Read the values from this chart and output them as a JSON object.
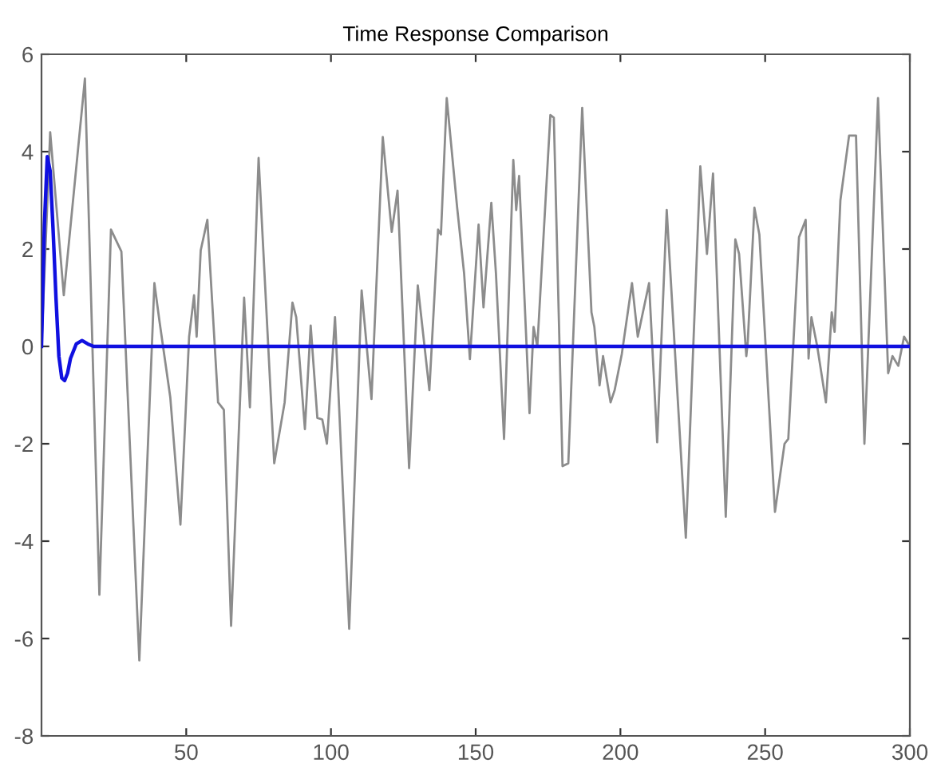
{
  "chart_data": {
    "type": "line",
    "title": "Time Response Comparison",
    "xlim": [
      0,
      300
    ],
    "ylim": [
      -8,
      6
    ],
    "xticks": [
      50,
      100,
      150,
      200,
      250,
      300
    ],
    "yticks": [
      -8,
      -6,
      -4,
      -2,
      0,
      2,
      4,
      6
    ],
    "grid": false,
    "series": [
      {
        "color": "#8c8c8c",
        "x": [
          0,
          3,
          7.7,
          15,
          20,
          24,
          27.6,
          33.8,
          39,
          40.8,
          44.5,
          48,
          51,
          52.7,
          53.6,
          55,
          57.3,
          61,
          63,
          65.5,
          70,
          72,
          75,
          80.4,
          84,
          86.7,
          88,
          91,
          93,
          95.3,
          97,
          98.6,
          101.4,
          106.3,
          110.6,
          114,
          117.9,
          121,
          123,
          127,
          130,
          134,
          137,
          138,
          140,
          143.6,
          146,
          148,
          151,
          152.7,
          155.4,
          157,
          159.8,
          163,
          164,
          165,
          168.6,
          170,
          171.3,
          175.8,
          177,
          180,
          182,
          186.8,
          190,
          191,
          192.8,
          194,
          196.6,
          198,
          200.5,
          204,
          206,
          209.9,
          212.7,
          216,
          222.6,
          227.6,
          229.9,
          232,
          236.4,
          239.7,
          241,
          243.5,
          244,
          246.3,
          248,
          253.4,
          256.7,
          258,
          261.7,
          264,
          265,
          266,
          268,
          271,
          273,
          274,
          276,
          279,
          281.4,
          284.3,
          289,
          292.5,
          294,
          296,
          298,
          300
        ],
        "values": [
          0,
          4.4,
          1.05,
          5.5,
          -5.1,
          2.4,
          1.95,
          -6.45,
          1.3,
          0.5,
          -1.05,
          -3.66,
          0.2,
          1.05,
          0.2,
          1.97,
          2.6,
          -1.15,
          -1.3,
          -5.74,
          1.0,
          -1.25,
          3.87,
          -2.4,
          -1.15,
          0.9,
          0.6,
          -1.7,
          0.43,
          -1.47,
          -1.5,
          -2.0,
          0.6,
          -5.8,
          1.15,
          -1.08,
          4.3,
          2.35,
          3.2,
          -2.5,
          1.25,
          -0.9,
          2.4,
          2.3,
          5.1,
          2.85,
          1.5,
          -0.26,
          2.5,
          0.8,
          2.95,
          1.5,
          -1.9,
          3.83,
          2.8,
          3.5,
          -1.37,
          0.4,
          0.0,
          4.75,
          4.7,
          -2.46,
          -2.4,
          4.9,
          0.7,
          0.4,
          -0.8,
          -0.2,
          -1.15,
          -0.9,
          -0.15,
          1.3,
          0.2,
          1.3,
          -1.97,
          2.8,
          -3.93,
          3.7,
          1.9,
          3.55,
          -3.5,
          2.2,
          1.9,
          -0.2,
          0.1,
          2.85,
          2.3,
          -3.4,
          -2.0,
          -1.9,
          2.24,
          2.6,
          -0.25,
          0.6,
          0.0,
          -1.15,
          0.7,
          0.3,
          3.0,
          4.33,
          4.33,
          -2.0,
          5.1,
          -0.55,
          -0.2,
          -0.4,
          0.2,
          0.0
        ]
      },
      {
        "color": "#1010e0",
        "x": [
          0,
          1,
          2,
          3,
          4,
          5,
          6,
          7,
          8,
          9,
          10,
          12,
          14,
          16,
          18,
          300
        ],
        "values": [
          0,
          2.5,
          3.9,
          3.6,
          2.4,
          1.0,
          -0.2,
          -0.65,
          -0.7,
          -0.55,
          -0.25,
          0.05,
          0.12,
          0.05,
          0,
          0
        ]
      }
    ]
  }
}
